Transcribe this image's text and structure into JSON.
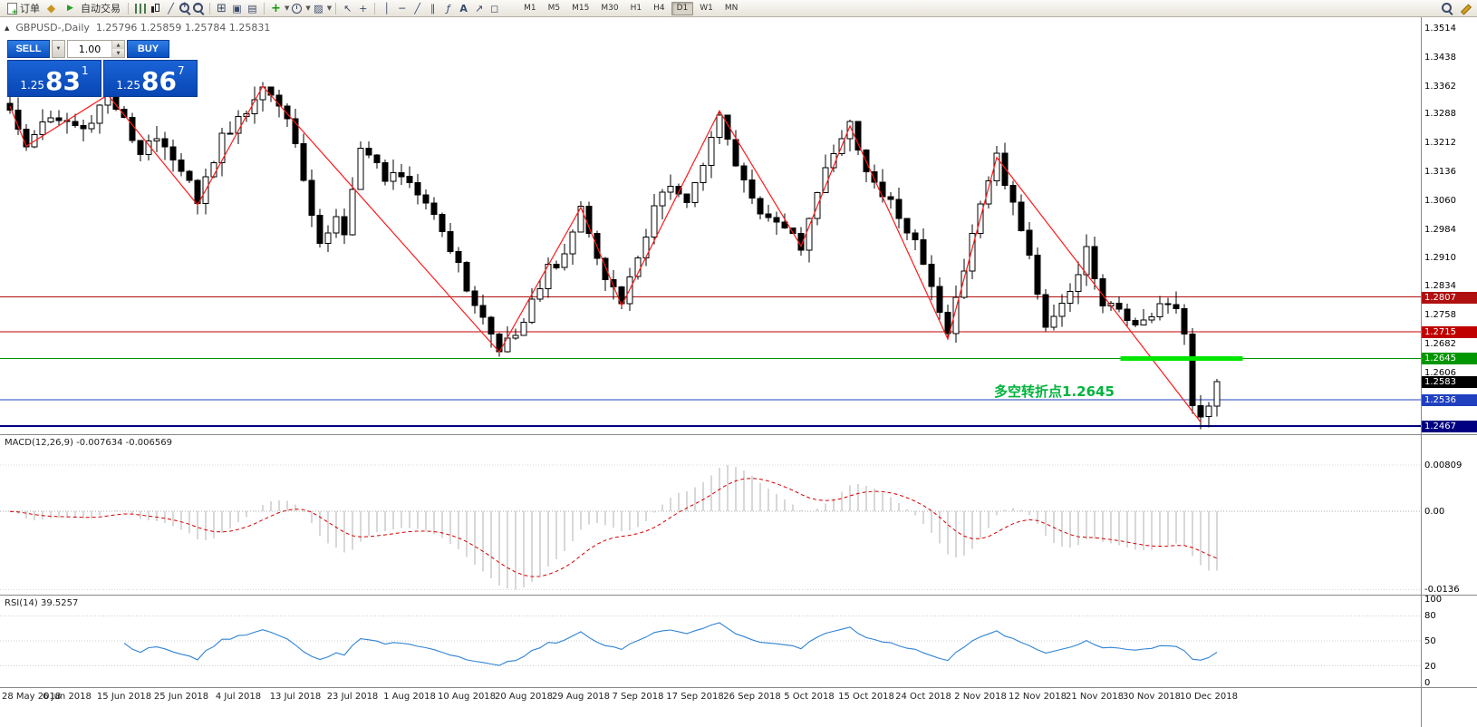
{
  "toolbar": {
    "order_label": "订单",
    "autotrade_label": "自动交易",
    "timeframes": [
      "M1",
      "M5",
      "M15",
      "M30",
      "H1",
      "H4",
      "D1",
      "W1",
      "MN"
    ],
    "active_timeframe": "D1",
    "icon_names": [
      "new-order",
      "profiles",
      "autotrading",
      "bar-chart",
      "candlestick-chart",
      "line-chart",
      "zoom-in",
      "zoom-out",
      "tile-windows",
      "window-arrange",
      "window-cascade",
      "indicators",
      "periods",
      "templates",
      "cursor",
      "crosshair",
      "vertical-line",
      "horizontal-line",
      "trendline",
      "equidistant-channel",
      "fibonacci",
      "text",
      "arrows",
      "shapes",
      "search",
      "edit"
    ]
  },
  "chart_header": {
    "symbol": "GBPUSD-,Daily",
    "quotes": "1.25796 1.25859 1.25784 1.25831"
  },
  "trade_panel": {
    "sell_label": "SELL",
    "buy_label": "BUY",
    "lot_value": "1.00",
    "sell_price_main": "1.25",
    "sell_price_big": "83",
    "sell_price_sup": "1",
    "buy_price_main": "1.25",
    "buy_price_big": "86",
    "buy_price_sup": "7"
  },
  "macd_panel": {
    "label": "MACD(12,26,9) -0.007634 -0.006569"
  },
  "rsi_panel": {
    "label": "RSI(14) 39.5257"
  },
  "chart_data": {
    "type": "candlestick",
    "symbol": "GBPUSD",
    "period": "Daily",
    "current_quote": {
      "open": 1.25796,
      "high": 1.25859,
      "low": 1.25784,
      "close": 1.25831,
      "bid": 1.25831,
      "ask": 1.25867
    },
    "bars": 149,
    "price_axis_range": [
      1.2445,
      1.3545
    ],
    "price_ticks": [
      1.3514,
      1.3438,
      1.3362,
      1.3288,
      1.3212,
      1.3136,
      1.306,
      1.2984,
      1.291,
      1.2834,
      1.2758,
      1.2682,
      1.2606,
      1.253
    ],
    "h_levels": [
      {
        "price": 1.2807,
        "label": "1.2807",
        "color": "#b01010",
        "width": 1
      },
      {
        "price": 1.2715,
        "label": "1.2715",
        "color": "#c00000",
        "width": 1
      },
      {
        "price": 1.2645,
        "label": "1.2645",
        "color": "#009600",
        "width": 1
      },
      {
        "price": 1.2536,
        "label": "1.2536",
        "color": "#2040c0",
        "width": 1
      },
      {
        "price": 1.2467,
        "label": "1.2467",
        "color": "#000080",
        "width": 2
      }
    ],
    "current_price_label": {
      "price": 1.2583,
      "label": "1.2583"
    },
    "highlight_bar": {
      "price": 1.2645,
      "x_from_bar": 136.5,
      "x_to_bar": 151.5,
      "color": "#00e600",
      "thickness": 5
    },
    "annotation": {
      "text": "多空转折点1.2645",
      "bar": 121,
      "price": 1.2604,
      "color": "#00b43c"
    },
    "zigzag_pivots": [
      [
        0,
        1.331
      ],
      [
        2,
        1.3205
      ],
      [
        12,
        1.334
      ],
      [
        23,
        1.305
      ],
      [
        31,
        1.3363
      ],
      [
        60,
        1.2662
      ],
      [
        70,
        1.3043
      ],
      [
        75,
        1.2784
      ],
      [
        87,
        1.3298
      ],
      [
        97,
        1.2941
      ],
      [
        103,
        1.3258
      ],
      [
        115,
        1.2696
      ],
      [
        121,
        1.3175
      ],
      [
        146,
        1.2477
      ]
    ],
    "price_path": [
      [
        0,
        1.331
      ],
      [
        2,
        1.3205
      ],
      [
        5,
        1.329
      ],
      [
        9,
        1.325
      ],
      [
        12,
        1.334
      ],
      [
        14,
        1.327
      ],
      [
        16,
        1.318
      ],
      [
        18,
        1.324
      ],
      [
        21,
        1.315
      ],
      [
        23,
        1.305
      ],
      [
        26,
        1.323
      ],
      [
        28,
        1.327
      ],
      [
        31,
        1.3363
      ],
      [
        34,
        1.328
      ],
      [
        38,
        1.2957
      ],
      [
        40,
        1.301
      ],
      [
        41,
        1.296
      ],
      [
        43,
        1.3213
      ],
      [
        46,
        1.312
      ],
      [
        49,
        1.3124
      ],
      [
        52,
        1.302
      ],
      [
        54,
        1.294
      ],
      [
        56,
        1.283
      ],
      [
        58,
        1.275
      ],
      [
        60,
        1.2662
      ],
      [
        62,
        1.272
      ],
      [
        64,
        1.279
      ],
      [
        66,
        1.288
      ],
      [
        68,
        1.292
      ],
      [
        70,
        1.3043
      ],
      [
        72,
        1.291
      ],
      [
        75,
        1.2784
      ],
      [
        77,
        1.292
      ],
      [
        79,
        1.304
      ],
      [
        81,
        1.31
      ],
      [
        83,
        1.305
      ],
      [
        85,
        1.315
      ],
      [
        87,
        1.3298
      ],
      [
        89,
        1.315
      ],
      [
        91,
        1.306
      ],
      [
        93,
        1.302
      ],
      [
        95,
        1.3
      ],
      [
        97,
        1.2941
      ],
      [
        99,
        1.309
      ],
      [
        101,
        1.32
      ],
      [
        103,
        1.3258
      ],
      [
        105,
        1.315
      ],
      [
        107,
        1.308
      ],
      [
        109,
        1.302
      ],
      [
        111,
        1.296
      ],
      [
        113,
        1.283
      ],
      [
        115,
        1.2696
      ],
      [
        117,
        1.289
      ],
      [
        119,
        1.304
      ],
      [
        121,
        1.3175
      ],
      [
        123,
        1.306
      ],
      [
        125,
        1.292
      ],
      [
        127,
        1.2724
      ],
      [
        129,
        1.28
      ],
      [
        131,
        1.287
      ],
      [
        132,
        1.2927
      ],
      [
        134,
        1.279
      ],
      [
        136,
        1.276
      ],
      [
        138,
        1.2734
      ],
      [
        140,
        1.275
      ],
      [
        142,
        1.28
      ],
      [
        144,
        1.2723
      ],
      [
        145,
        1.253
      ],
      [
        146,
        1.249
      ],
      [
        147,
        1.252
      ],
      [
        148,
        1.25831
      ]
    ],
    "macd": {
      "settings": [
        12,
        26,
        9
      ],
      "current_main": -0.007634,
      "current_signal": -0.006569,
      "axis": [
        {
          "v": 0.00809,
          "t": "0.00809"
        },
        {
          "v": 0,
          "t": "0.00"
        },
        {
          "v": -0.0136,
          "t": "-0.0136"
        }
      ],
      "range": [
        -0.0145,
        0.0133
      ]
    },
    "rsi": {
      "period": 14,
      "current": 39.5257,
      "axis": [
        {
          "v": 100,
          "t": "100"
        },
        {
          "v": 80,
          "t": "80"
        },
        {
          "v": 50,
          "t": "50"
        },
        {
          "v": 20,
          "t": "20"
        },
        {
          "v": 0,
          "t": "0"
        }
      ],
      "levels": [
        80,
        50,
        20
      ]
    },
    "time_labels": [
      {
        "bar": 0,
        "t": "28 May 2018"
      },
      {
        "bar": 7,
        "t": "6 Jun 2018"
      },
      {
        "bar": 14,
        "t": "15 Jun 2018"
      },
      {
        "bar": 21,
        "t": "25 Jun 2018"
      },
      {
        "bar": 28,
        "t": "4 Jul 2018"
      },
      {
        "bar": 35,
        "t": "13 Jul 2018"
      },
      {
        "bar": 42,
        "t": "23 Jul 2018"
      },
      {
        "bar": 49,
        "t": "1 Aug 2018"
      },
      {
        "bar": 56,
        "t": "10 Aug 2018"
      },
      {
        "bar": 63,
        "t": "20 Aug 2018"
      },
      {
        "bar": 70,
        "t": "29 Aug 2018"
      },
      {
        "bar": 77,
        "t": "7 Sep 2018"
      },
      {
        "bar": 84,
        "t": "17 Sep 2018"
      },
      {
        "bar": 91,
        "t": "26 Sep 2018"
      },
      {
        "bar": 98,
        "t": "5 Oct 2018"
      },
      {
        "bar": 105,
        "t": "15 Oct 2018"
      },
      {
        "bar": 112,
        "t": "24 Oct 2018"
      },
      {
        "bar": 119,
        "t": "2 Nov 2018"
      },
      {
        "bar": 126,
        "t": "12 Nov 2018"
      },
      {
        "bar": 133,
        "t": "21 Nov 2018"
      },
      {
        "bar": 140,
        "t": "30 Nov 2018"
      },
      {
        "bar": 147,
        "t": "10 Dec 2018"
      }
    ]
  }
}
